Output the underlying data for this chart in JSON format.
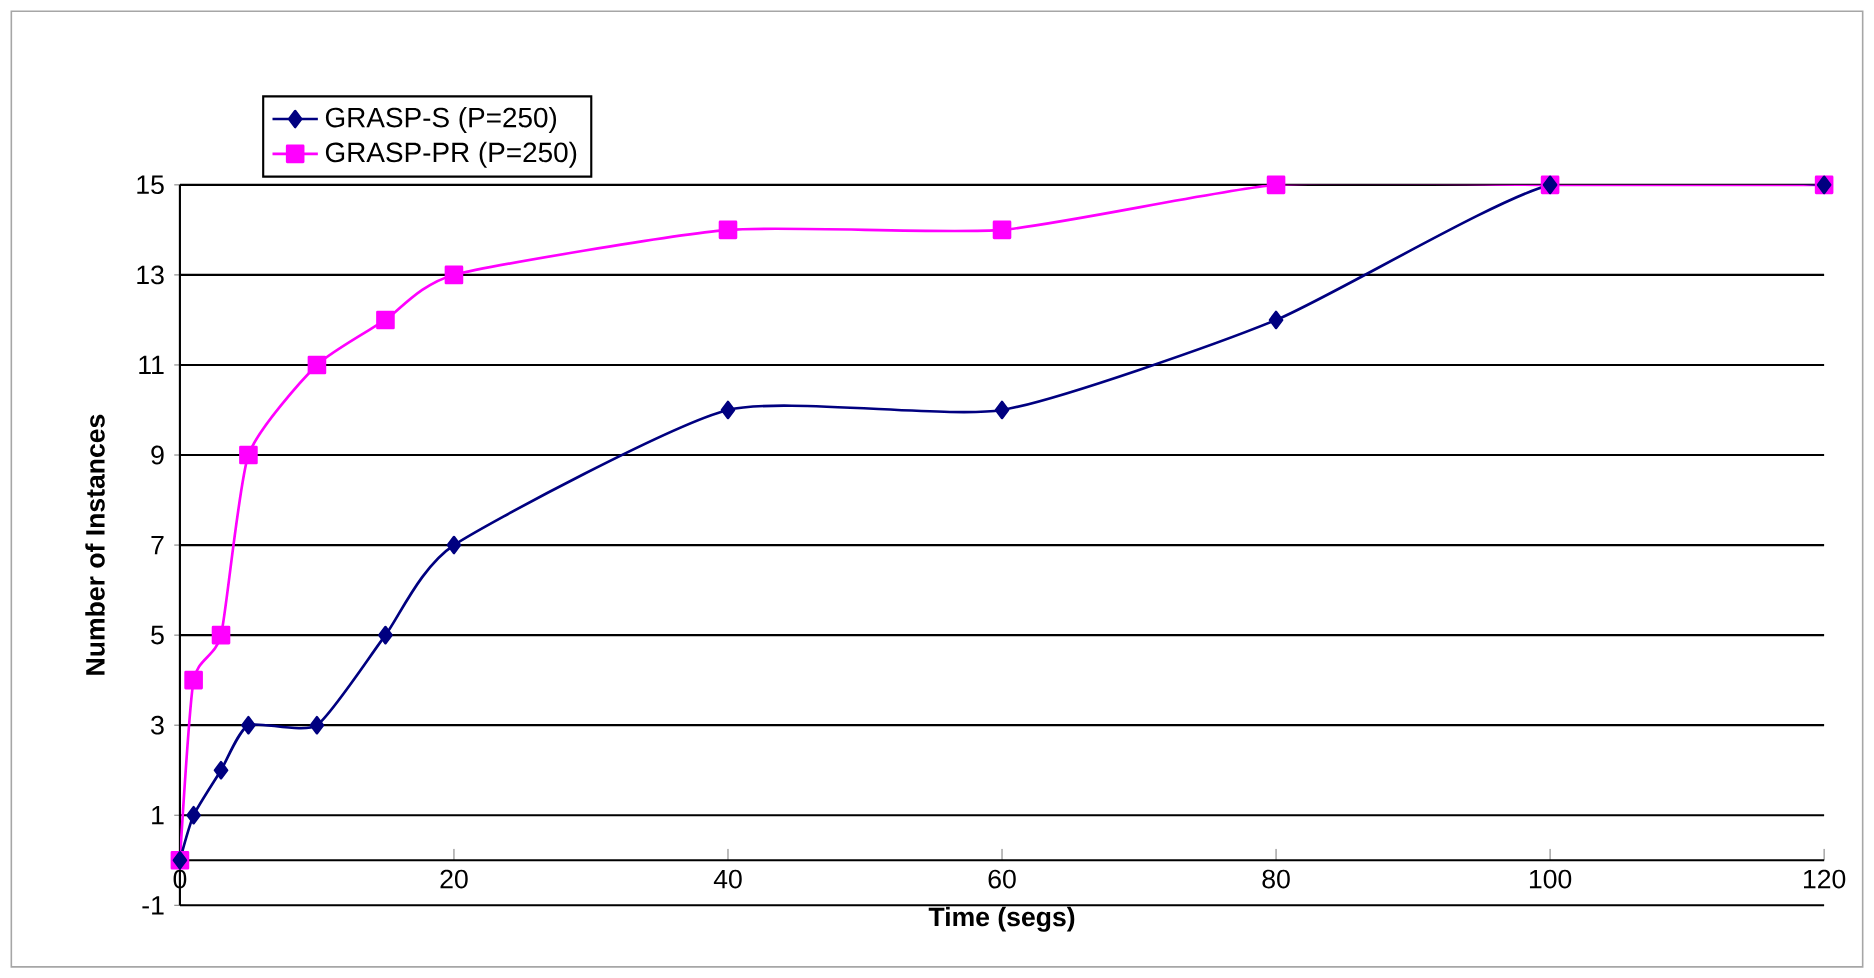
{
  "chart_data": {
    "type": "line",
    "xlabel": "Time (segs)",
    "ylabel": "Number of Instances",
    "xlim": [
      0,
      120
    ],
    "xticks": [
      0,
      20,
      40,
      60,
      80,
      100,
      120
    ],
    "ylim": [
      -1,
      15
    ],
    "yticks": [
      -1,
      1,
      3,
      5,
      7,
      9,
      11,
      13,
      15
    ],
    "grid": "y",
    "legend": "top left",
    "line_style": "solid",
    "series": [
      {
        "name": "GRASP-S (P=250)",
        "color": "#000080",
        "marker": "diamond",
        "x": [
          0,
          1,
          3,
          5,
          10,
          15,
          20,
          40,
          60,
          80,
          100,
          120
        ],
        "values": [
          0,
          1,
          2,
          3,
          3,
          5,
          7,
          10,
          10,
          12,
          15,
          15
        ]
      },
      {
        "name": "GRASP-PR (P=250)",
        "color": "#ff00ff",
        "marker": "square",
        "x": [
          0,
          1,
          3,
          5,
          10,
          15,
          20,
          40,
          60,
          80,
          100,
          120
        ],
        "values": [
          0,
          4,
          5,
          9,
          11,
          12,
          13,
          14,
          14,
          15,
          15,
          15
        ]
      }
    ]
  }
}
